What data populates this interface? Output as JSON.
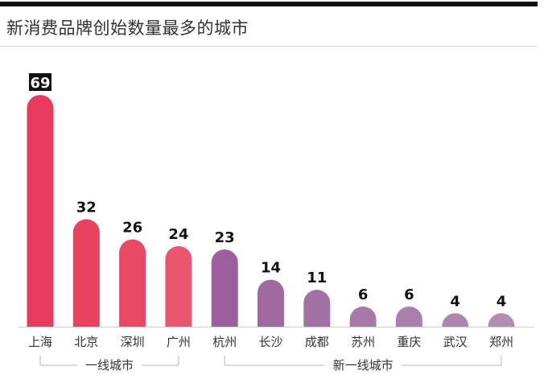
{
  "title": "新消费品牌创始数量最多的城市",
  "chart_data": {
    "type": "bar",
    "title": "新消费品牌创始数量最多的城市",
    "categories": [
      "上海",
      "北京",
      "深圳",
      "广州",
      "杭州",
      "长沙",
      "成都",
      "苏州",
      "重庆",
      "武汉",
      "郑州"
    ],
    "values": [
      69,
      32,
      26,
      24,
      23,
      14,
      11,
      6,
      6,
      4,
      4
    ],
    "ylim": [
      0,
      69
    ],
    "grid": false,
    "legend": "none",
    "highlight_label_index": 0,
    "groups": [
      {
        "label": "一线城市",
        "start": 0,
        "end": 3
      },
      {
        "label": "新一线城市",
        "start": 4,
        "end": 10
      }
    ],
    "bar_colors": [
      "#e83a5c",
      "#e8425f",
      "#e84a66",
      "#ea5570",
      "#9a5f9c",
      "#a06aa0",
      "#a372a5",
      "#a679a8",
      "#a97fab",
      "#ad86ae",
      "#b08db1"
    ],
    "value_label_color": "#111111",
    "highlight_label_bg": "#111111"
  }
}
